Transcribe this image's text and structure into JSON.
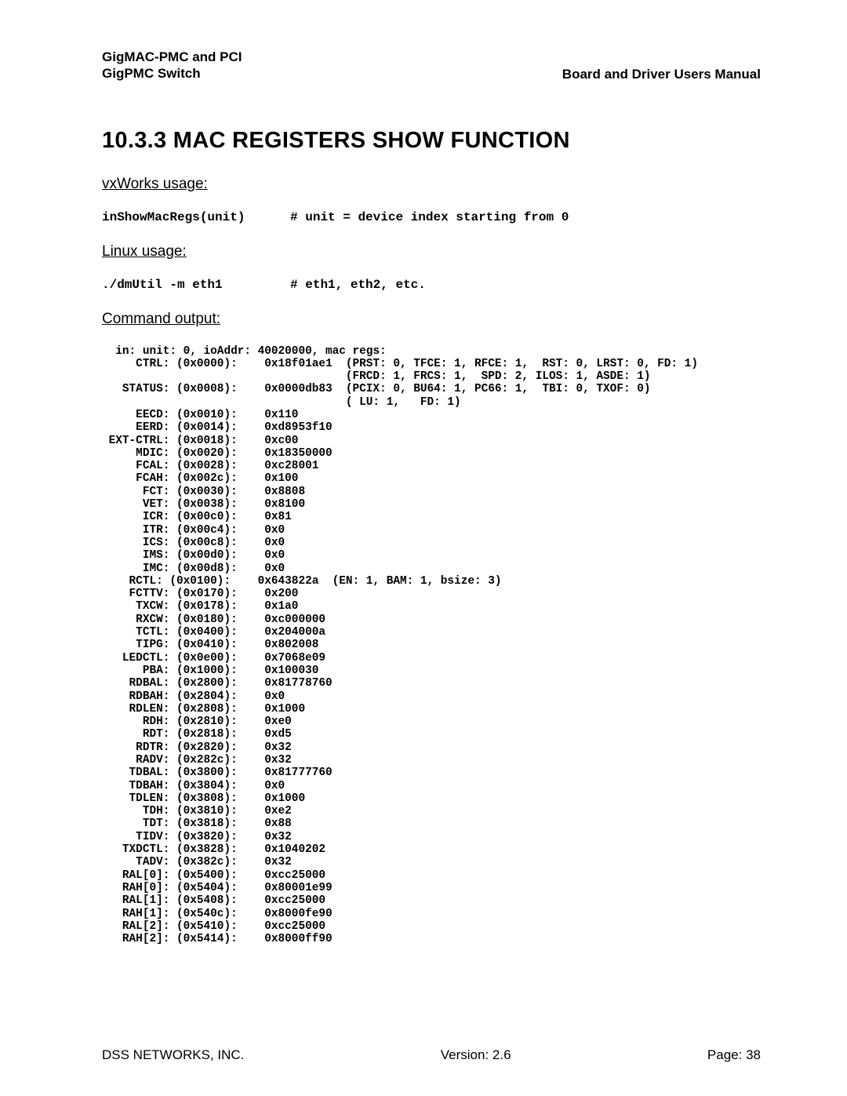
{
  "header": {
    "left_line1": "GigMAC-PMC and PCI",
    "left_line2": "GigPMC Switch",
    "right": "Board and Driver Users Manual"
  },
  "section_title": "10.3.3 MAC REGISTERS SHOW FUNCTION",
  "vxworks": {
    "heading": "vxWorks usage:",
    "command": "inShowMacRegs(unit)      # unit = device index starting from 0"
  },
  "linux": {
    "heading": "Linux usage:",
    "command": "./dmUtil -m eth1         # eth1, eth2, etc."
  },
  "output_heading": "Command output:",
  "output_text": "  in: unit: 0, ioAddr: 40020000, mac regs:\n     CTRL: (0x0000):    0x18f01ae1  (PRST: 0, TFCE: 1, RFCE: 1,  RST: 0, LRST: 0, FD: 1)\n                                    (FRCD: 1, FRCS: 1,  SPD: 2, ILOS: 1, ASDE: 1)\n   STATUS: (0x0008):    0x0000db83  (PCIX: 0, BU64: 1, PC66: 1,  TBI: 0, TXOF: 0)\n                                    ( LU: 1,   FD: 1)\n     EECD: (0x0010):    0x110\n     EERD: (0x0014):    0xd8953f10\n EXT-CTRL: (0x0018):    0xc00\n     MDIC: (0x0020):    0x18350000\n     FCAL: (0x0028):    0xc28001\n     FCAH: (0x002c):    0x100\n      FCT: (0x0030):    0x8808\n      VET: (0x0038):    0x8100\n      ICR: (0x00c0):    0x81\n      ITR: (0x00c4):    0x0\n      ICS: (0x00c8):    0x0\n      IMS: (0x00d0):    0x0\n      IMC: (0x00d8):    0x0\n    RCTL: (0x0100):    0x643822a  (EN: 1, BAM: 1, bsize: 3)\n    FCTTV: (0x0170):    0x200\n     TXCW: (0x0178):    0x1a0\n     RXCW: (0x0180):    0xc000000\n     TCTL: (0x0400):    0x204000a\n     TIPG: (0x0410):    0x802008\n   LEDCTL: (0x0e00):    0x7068e09\n      PBA: (0x1000):    0x100030\n    RDBAL: (0x2800):    0x81778760\n    RDBAH: (0x2804):    0x0\n    RDLEN: (0x2808):    0x1000\n      RDH: (0x2810):    0xe0\n      RDT: (0x2818):    0xd5\n     RDTR: (0x2820):    0x32\n     RADV: (0x282c):    0x32\n    TDBAL: (0x3800):    0x81777760\n    TDBAH: (0x3804):    0x0\n    TDLEN: (0x3808):    0x1000\n      TDH: (0x3810):    0xe2\n      TDT: (0x3818):    0x88\n     TIDV: (0x3820):    0x32\n   TXDCTL: (0x3828):    0x1040202\n     TADV: (0x382c):    0x32\n   RAL[0]: (0x5400):    0xcc25000\n   RAH[0]: (0x5404):    0x80001e99\n   RAL[1]: (0x5408):    0xcc25000\n   RAH[1]: (0x540c):    0x8000fe90\n   RAL[2]: (0x5410):    0xcc25000\n   RAH[2]: (0x5414):    0x8000ff90",
  "footer": {
    "left": "DSS NETWORKS, INC.",
    "center": "Version: 2.6",
    "right": "Page: 38"
  }
}
